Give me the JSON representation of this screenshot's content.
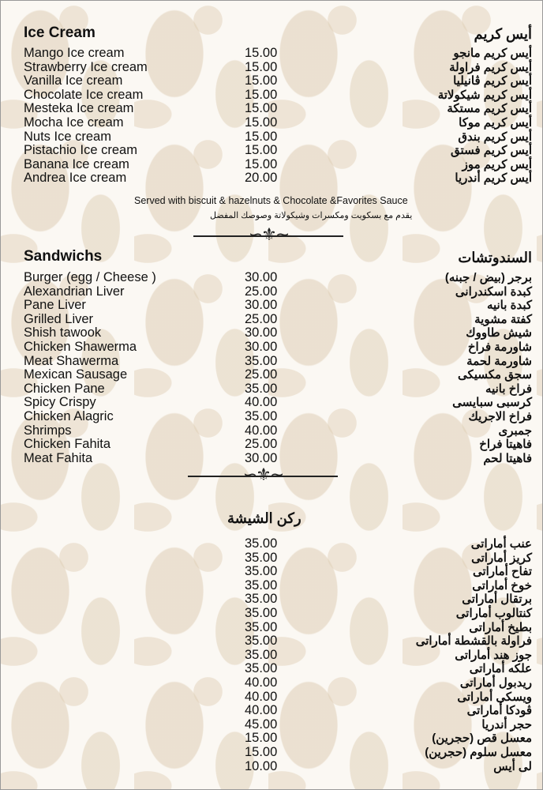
{
  "ice_cream": {
    "title_en": "Ice Cream",
    "title_ar": "أيس كريم",
    "items": [
      {
        "en": "Mango Ice cream",
        "price": "15.00",
        "ar": "أيس كريم مانجو"
      },
      {
        "en": "Strawberry Ice cream",
        "price": "15.00",
        "ar": "أيس كريم فراولة"
      },
      {
        "en": "Vanilla Ice cream",
        "price": "15.00",
        "ar": "أيس كريم ڤانيليا"
      },
      {
        "en": "Chocolate Ice cream",
        "price": "15.00",
        "ar": "أيس كريم شيكولاتة"
      },
      {
        "en": "Mesteka Ice cream",
        "price": "15.00",
        "ar": "أيس كريم مستكة"
      },
      {
        "en": "Mocha Ice cream",
        "price": "15.00",
        "ar": "أيس كريم موكا"
      },
      {
        "en": "Nuts Ice cream",
        "price": "15.00",
        "ar": "أيس كريم بندق"
      },
      {
        "en": "Pistachio Ice cream",
        "price": "15.00",
        "ar": "أيس كريم فستق"
      },
      {
        "en": "Banana Ice cream",
        "price": "15.00",
        "ar": "أيس كريم موز"
      },
      {
        "en": "Andrea Ice cream",
        "price": "20.00",
        "ar": "أيس كريم أندريا"
      }
    ],
    "note_en": "Served with biscuit & hazelnuts & Chocolate &Favorites Sauce",
    "note_ar": "يقدم مع بسكويت ومكسرات وشيكولاتة وصوصك المفضل"
  },
  "sandwiches": {
    "title_en": "Sandwichs",
    "title_ar": "السندوتشات",
    "items": [
      {
        "en": "Burger (egg / Cheese )",
        "price": "30.00",
        "ar": "برجر (بيض / جبنه)"
      },
      {
        "en": "Alexandrian Liver",
        "price": "25.00",
        "ar": "كبدة اسكندرانى"
      },
      {
        "en": "Pane Liver",
        "price": "30.00",
        "ar": "كبدة بانيه"
      },
      {
        "en": "Grilled Liver",
        "price": "25.00",
        "ar": "كفتة مشوية"
      },
      {
        "en": "Shish tawook",
        "price": "30.00",
        "ar": "شيش طاووك"
      },
      {
        "en": "Chicken Shawerma",
        "price": "30.00",
        "ar": "شاورمة فراخ"
      },
      {
        "en": "Meat Shawerma",
        "price": "35.00",
        "ar": "شاورمة لحمة"
      },
      {
        "en": "Mexican Sausage",
        "price": "25.00",
        "ar": "سجق مكسيكى"
      },
      {
        "en": "Chicken Pane",
        "price": "35.00",
        "ar": "فراخ بانيه"
      },
      {
        "en": "Spicy Crispy",
        "price": "40.00",
        "ar": "كرسبى سبايسى"
      },
      {
        "en": "Chicken Alagric",
        "price": "35.00",
        "ar": "فراخ الاجريك"
      },
      {
        "en": "Shrimps",
        "price": "40.00",
        "ar": "جمبرى"
      },
      {
        "en": "Chicken Fahita",
        "price": "25.00",
        "ar": "فاهيتا فراخ"
      },
      {
        "en": "Meat Fahita",
        "price": "30.00",
        "ar": "فاهيتا لحم"
      }
    ]
  },
  "shisha": {
    "title_ar": "ركن الشيشة",
    "items": [
      {
        "price": "35.00",
        "ar": "عنب أماراتى"
      },
      {
        "price": "35.00",
        "ar": "كريز أماراتى"
      },
      {
        "price": "35.00",
        "ar": "تفاح أماراتى"
      },
      {
        "price": "35.00",
        "ar": "خوخ أماراتى"
      },
      {
        "price": "35.00",
        "ar": "برتقال أماراتى"
      },
      {
        "price": "35.00",
        "ar": "كنتالوب أماراتى"
      },
      {
        "price": "35.00",
        "ar": "بطيخ أماراتى"
      },
      {
        "price": "35.00",
        "ar": "فراولة بالقشطة أماراتى"
      },
      {
        "price": "35.00",
        "ar": "جوز هند أماراتى"
      },
      {
        "price": "35.00",
        "ar": "علكه أماراتى"
      },
      {
        "price": "40.00",
        "ar": "ريدبول أماراتى"
      },
      {
        "price": "40.00",
        "ar": "ويسكى أماراتى"
      },
      {
        "price": "40.00",
        "ar": "ڤودكا أماراتى"
      },
      {
        "price": "45.00",
        "ar": "حجر أندريا"
      },
      {
        "price": "15.00",
        "ar": "معسل قص (حجرين)"
      },
      {
        "price": "15.00",
        "ar": "معسل سلوم (حجرين)"
      },
      {
        "price": "10.00",
        "ar": "لى أيس"
      }
    ]
  }
}
